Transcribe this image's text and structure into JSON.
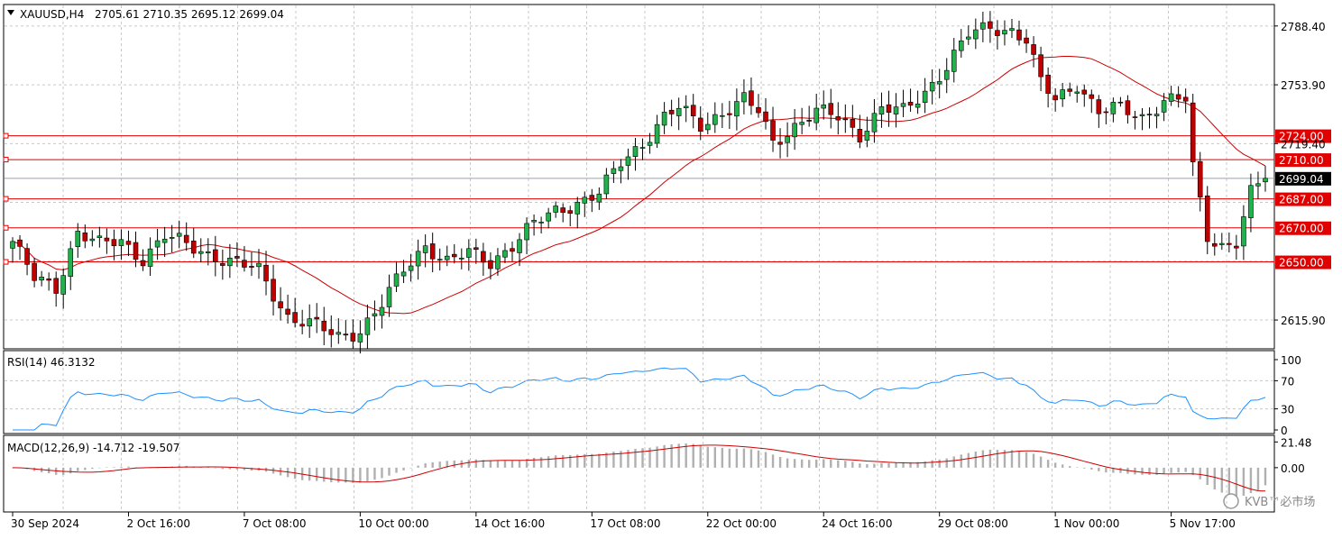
{
  "header": {
    "symbol": "XAUUSD,H4",
    "ohlc": "2705.61 2710.35 2695.12 2699.04"
  },
  "indicators": {
    "rsi_label": "RSI(14) 46.3132",
    "macd_label": "MACD(12,26,9) -14.712 -19.507"
  },
  "watermark": "KVB™必市场",
  "colors": {
    "bull": "#22b14c",
    "bear": "#c00000",
    "ma": "#cc0000",
    "rsi": "#1e90ff",
    "macd_hist": "#b0b0b0",
    "macd_signal": "#cc0000",
    "level_line": "#e00000",
    "current_price": "#000000"
  },
  "chart_data": {
    "type": "candlestick",
    "price_axis": {
      "min": 2599.0,
      "max": 2801.0,
      "ticks": [
        2788.4,
        2753.9,
        2719.4,
        2615.9
      ],
      "tick_labels": [
        "2788.40",
        "2753.90",
        "2719.40",
        "2615.90"
      ]
    },
    "levels": [
      {
        "value": 2724.0,
        "label": "2724.00"
      },
      {
        "value": 2710.0,
        "label": "2710.00"
      },
      {
        "value": 2687.0,
        "label": "2687.00"
      },
      {
        "value": 2670.0,
        "label": "2670.00"
      },
      {
        "value": 2650.0,
        "label": "2650.00"
      }
    ],
    "current_price": {
      "value": 2699.04,
      "label": "2699.04"
    },
    "x_labels": [
      "30 Sep 2024",
      "2 Oct 16:00",
      "7 Oct 08:00",
      "10 Oct 00:00",
      "14 Oct 16:00",
      "17 Oct 08:00",
      "22 Oct 00:00",
      "24 Oct 16:00",
      "29 Oct 08:00",
      "1 Nov 00:00",
      "5 Nov 17:00"
    ],
    "x_label_bars": [
      0,
      16,
      32,
      48,
      64,
      80,
      96,
      112,
      128,
      144,
      160
    ],
    "closes_anchor": [
      [
        0,
        2662
      ],
      [
        3,
        2640
      ],
      [
        6,
        2635
      ],
      [
        9,
        2668
      ],
      [
        12,
        2660
      ],
      [
        15,
        2662
      ],
      [
        18,
        2652
      ],
      [
        21,
        2665
      ],
      [
        24,
        2660
      ],
      [
        27,
        2655
      ],
      [
        30,
        2650
      ],
      [
        34,
        2645
      ],
      [
        38,
        2618
      ],
      [
        42,
        2612
      ],
      [
        45,
        2606
      ],
      [
        48,
        2610
      ],
      [
        51,
        2625
      ],
      [
        54,
        2645
      ],
      [
        57,
        2660
      ],
      [
        60,
        2650
      ],
      [
        63,
        2655
      ],
      [
        66,
        2650
      ],
      [
        69,
        2660
      ],
      [
        72,
        2672
      ],
      [
        75,
        2680
      ],
      [
        78,
        2685
      ],
      [
        81,
        2690
      ],
      [
        84,
        2708
      ],
      [
        87,
        2720
      ],
      [
        90,
        2735
      ],
      [
        92,
        2740
      ],
      [
        95,
        2730
      ],
      [
        98,
        2738
      ],
      [
        101,
        2745
      ],
      [
        103,
        2738
      ],
      [
        105,
        2720
      ],
      [
        108,
        2730
      ],
      [
        111,
        2738
      ],
      [
        114,
        2735
      ],
      [
        117,
        2725
      ],
      [
        120,
        2740
      ],
      [
        123,
        2738
      ],
      [
        126,
        2750
      ],
      [
        129,
        2765
      ],
      [
        132,
        2783
      ],
      [
        135,
        2788
      ],
      [
        138,
        2786
      ],
      [
        140,
        2780
      ],
      [
        142,
        2755
      ],
      [
        144,
        2745
      ],
      [
        147,
        2755
      ],
      [
        150,
        2738
      ],
      [
        153,
        2740
      ],
      [
        156,
        2735
      ],
      [
        159,
        2745
      ],
      [
        162,
        2745
      ],
      [
        163,
        2705
      ],
      [
        165,
        2665
      ],
      [
        167,
        2660
      ],
      [
        169,
        2662
      ],
      [
        171,
        2690
      ],
      [
        173,
        2699.04
      ]
    ],
    "ma_period": 20,
    "rsi": {
      "axis_ticks": [
        100,
        70,
        30,
        0
      ],
      "axis_labels": [
        "100",
        "70",
        "30",
        "0"
      ],
      "last": 46.3132
    },
    "macd": {
      "axis_ticks": [
        21.48,
        0.0
      ],
      "axis_labels": [
        "21.48",
        "0.00"
      ],
      "last_main": -14.712,
      "last_signal": -19.507
    },
    "bars": 174
  }
}
